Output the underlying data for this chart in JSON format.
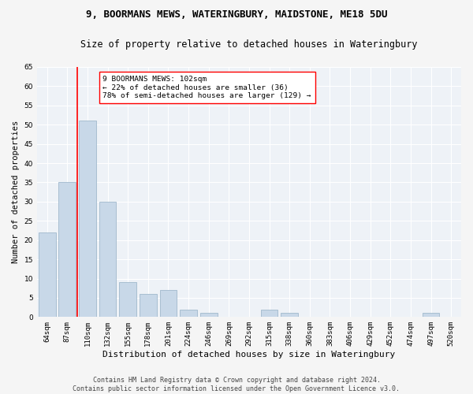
{
  "title": "9, BOORMANS MEWS, WATERINGBURY, MAIDSTONE, ME18 5DU",
  "subtitle": "Size of property relative to detached houses in Wateringbury",
  "xlabel": "Distribution of detached houses by size in Wateringbury",
  "ylabel": "Number of detached properties",
  "categories": [
    "64sqm",
    "87sqm",
    "110sqm",
    "132sqm",
    "155sqm",
    "178sqm",
    "201sqm",
    "224sqm",
    "246sqm",
    "269sqm",
    "292sqm",
    "315sqm",
    "338sqm",
    "360sqm",
    "383sqm",
    "406sqm",
    "429sqm",
    "452sqm",
    "474sqm",
    "497sqm",
    "520sqm"
  ],
  "values": [
    22,
    35,
    51,
    30,
    9,
    6,
    7,
    2,
    1,
    0,
    0,
    2,
    1,
    0,
    0,
    0,
    0,
    0,
    0,
    1,
    0
  ],
  "bar_color": "#c8d8e8",
  "bar_edge_color": "#a0b8cc",
  "redline_x": 1.5,
  "annotation_text_line1": "9 BOORMANS MEWS: 102sqm",
  "annotation_text_line2": "← 22% of detached houses are smaller (36)",
  "annotation_text_line3": "78% of semi-detached houses are larger (129) →",
  "footer_line1": "Contains HM Land Registry data © Crown copyright and database right 2024.",
  "footer_line2": "Contains public sector information licensed under the Open Government Licence v3.0.",
  "ylim": [
    0,
    65
  ],
  "yticks": [
    0,
    5,
    10,
    15,
    20,
    25,
    30,
    35,
    40,
    45,
    50,
    55,
    60,
    65
  ],
  "bg_color": "#eef2f7",
  "grid_color": "#ffffff",
  "fig_bg_color": "#f5f5f5",
  "title_fontsize": 9,
  "subtitle_fontsize": 8.5,
  "xlabel_fontsize": 8,
  "ylabel_fontsize": 7.5,
  "tick_fontsize": 6.5,
  "annot_fontsize": 6.8,
  "footer_fontsize": 6.0
}
